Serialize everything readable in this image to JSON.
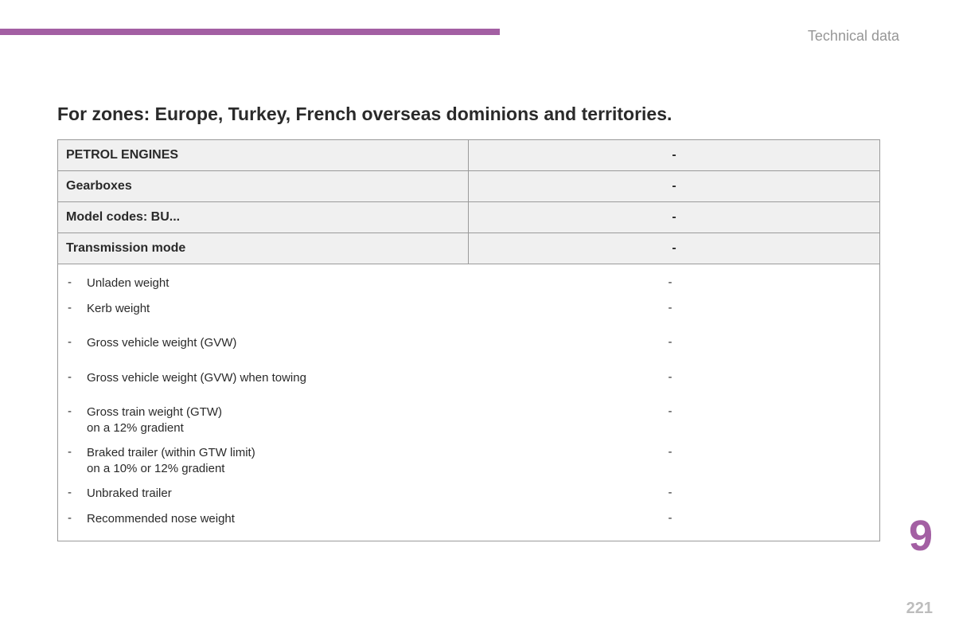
{
  "accent_color": "#a35fa3",
  "header": {
    "section": "Technical data"
  },
  "title": "For zones: Europe, Turkey, French overseas dominions and territories.",
  "table": {
    "header_rows": [
      {
        "label": "PETROL ENGINES",
        "value": "-"
      },
      {
        "label": "Gearboxes",
        "value": "-"
      },
      {
        "label": "Model codes: BU...",
        "value": "-"
      },
      {
        "label": "Transmission mode",
        "value": "-"
      }
    ],
    "body_rows": [
      {
        "label": "Unladen weight",
        "value": "-",
        "spaced": false
      },
      {
        "label": "Kerb weight",
        "value": "-",
        "spaced": false
      },
      {
        "label": "Gross vehicle weight (GVW)",
        "value": "-",
        "spaced": true
      },
      {
        "label": "Gross vehicle weight (GVW) when towing",
        "value": "-",
        "spaced": true
      },
      {
        "label": "Gross train weight (GTW)\non a 12% gradient",
        "value": "-",
        "spaced": true
      },
      {
        "label": "Braked trailer (within GTW limit)\non a 10% or 12% gradient",
        "value": "-",
        "spaced": false
      },
      {
        "label": "Unbraked trailer",
        "value": "-",
        "spaced": false
      },
      {
        "label": "Recommended nose weight",
        "value": "-",
        "spaced": false
      }
    ]
  },
  "chapter_number": "9",
  "page_number": "221"
}
